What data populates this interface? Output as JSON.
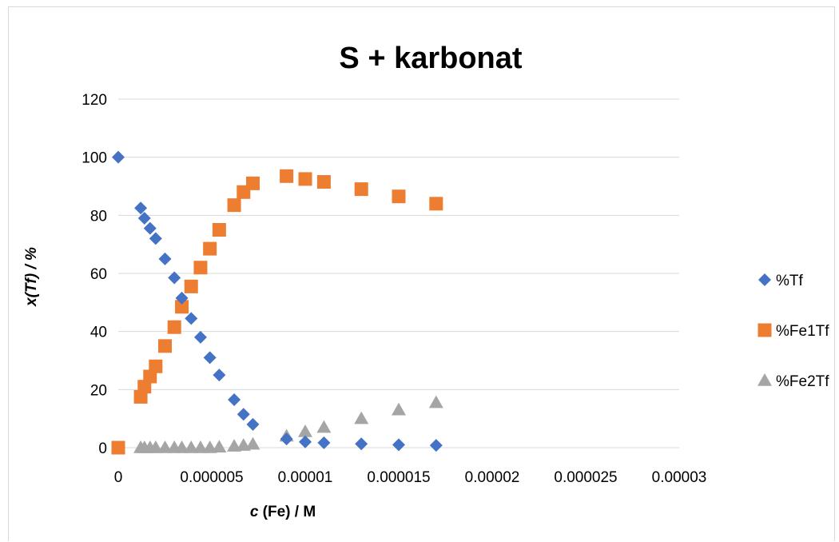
{
  "chart_data": {
    "type": "scatter",
    "title": "S + karbonat",
    "xlabel_italic": "c",
    "xlabel_rest": " (Fe) / M",
    "ylabel": "x(Tf) / %",
    "xlim": [
      0,
      3e-05
    ],
    "ylim": [
      0,
      120
    ],
    "x_ticks": [
      "0",
      "0.000005",
      "0.00001",
      "0.000015",
      "0.00002",
      "0.000025",
      "0.00003"
    ],
    "x_tick_values": [
      0,
      5e-06,
      1e-05,
      1.5e-05,
      2e-05,
      2.5e-05,
      3e-05
    ],
    "y_ticks": [
      "0",
      "20",
      "40",
      "60",
      "80",
      "100",
      "120"
    ],
    "y_tick_values": [
      0,
      20,
      40,
      60,
      80,
      100,
      120
    ],
    "grid": "horizontal",
    "legend_position": "right",
    "series": [
      {
        "name": "%Tf",
        "marker": "diamond",
        "color": "#4472C4",
        "points": [
          [
            0,
            100
          ],
          [
            1.2e-06,
            82.5
          ],
          [
            1.4e-06,
            79
          ],
          [
            1.7e-06,
            75.5
          ],
          [
            2e-06,
            72
          ],
          [
            2.5e-06,
            65
          ],
          [
            3e-06,
            58.5
          ],
          [
            3.4e-06,
            51.5
          ],
          [
            3.9e-06,
            44.5
          ],
          [
            4.4e-06,
            38
          ],
          [
            4.9e-06,
            31
          ],
          [
            5.4e-06,
            25
          ],
          [
            6.2e-06,
            16.5
          ],
          [
            6.7e-06,
            11.5
          ],
          [
            7.2e-06,
            8
          ],
          [
            9e-06,
            3
          ],
          [
            1e-05,
            2
          ],
          [
            1.1e-05,
            1.7
          ],
          [
            1.3e-05,
            1.3
          ],
          [
            1.5e-05,
            1
          ],
          [
            1.7e-05,
            0.8
          ]
        ]
      },
      {
        "name": "%Fe1Tf",
        "marker": "square",
        "color": "#ED7D31",
        "points": [
          [
            0,
            0
          ],
          [
            1.2e-06,
            17.5
          ],
          [
            1.4e-06,
            21
          ],
          [
            1.7e-06,
            24.5
          ],
          [
            2e-06,
            28
          ],
          [
            2.5e-06,
            35
          ],
          [
            3e-06,
            41.5
          ],
          [
            3.4e-06,
            48.5
          ],
          [
            3.9e-06,
            55.5
          ],
          [
            4.4e-06,
            62
          ],
          [
            4.9e-06,
            68.5
          ],
          [
            5.4e-06,
            75
          ],
          [
            6.2e-06,
            83.5
          ],
          [
            6.7e-06,
            88
          ],
          [
            7.2e-06,
            91
          ],
          [
            9e-06,
            93.5
          ],
          [
            1e-05,
            92.5
          ],
          [
            1.1e-05,
            91.5
          ],
          [
            1.3e-05,
            89
          ],
          [
            1.5e-05,
            86.5
          ],
          [
            1.7e-05,
            84
          ]
        ]
      },
      {
        "name": "%Fe2Tf",
        "marker": "triangle",
        "color": "#A5A5A5",
        "points": [
          [
            0,
            0
          ],
          [
            1.2e-06,
            0
          ],
          [
            1.4e-06,
            0
          ],
          [
            1.7e-06,
            0
          ],
          [
            2e-06,
            0
          ],
          [
            2.5e-06,
            0
          ],
          [
            3e-06,
            0
          ],
          [
            3.4e-06,
            0
          ],
          [
            3.9e-06,
            0
          ],
          [
            4.4e-06,
            0
          ],
          [
            4.9e-06,
            0
          ],
          [
            5.4e-06,
            0.2
          ],
          [
            6.2e-06,
            0.5
          ],
          [
            6.7e-06,
            0.8
          ],
          [
            7.2e-06,
            1.2
          ],
          [
            9e-06,
            4
          ],
          [
            1e-05,
            5.5
          ],
          [
            1.1e-05,
            7
          ],
          [
            1.3e-05,
            10
          ],
          [
            1.5e-05,
            13
          ],
          [
            1.7e-05,
            15.5
          ]
        ]
      }
    ]
  }
}
